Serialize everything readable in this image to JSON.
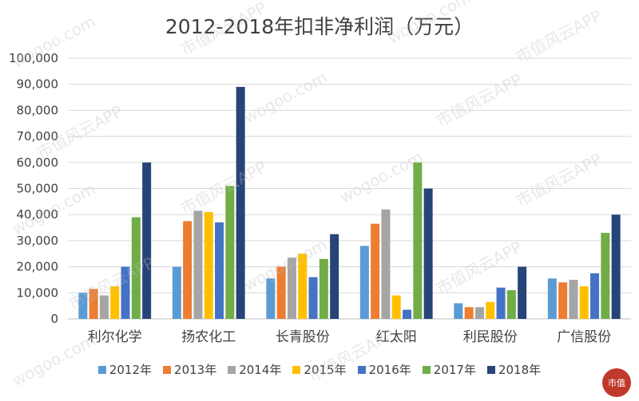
{
  "watermark": {
    "text_cn": "市值风云APP",
    "url": "wogoo.com",
    "logo": "市值"
  },
  "chart_data": {
    "type": "bar",
    "title": "2012-2018年扣非净利润（万元）",
    "xlabel": "",
    "ylabel": "",
    "ylim": [
      0,
      100000
    ],
    "yticks": [
      "0",
      "10,000",
      "20,000",
      "30,000",
      "40,000",
      "50,000",
      "60,000",
      "70,000",
      "80,000",
      "90,000",
      "100,000"
    ],
    "grid": true,
    "legend_position": "bottom",
    "categories": [
      "利尔化学",
      "扬农化工",
      "长青股份",
      "红太阳",
      "利民股份",
      "广信股份"
    ],
    "series": [
      {
        "name": "2012年",
        "color": "#5B9BD5",
        "values": [
          10000,
          20000,
          15500,
          28000,
          6000,
          15500
        ]
      },
      {
        "name": "2013年",
        "color": "#ED7D31",
        "values": [
          11500,
          37500,
          20000,
          36500,
          4500,
          14000
        ]
      },
      {
        "name": "2014年",
        "color": "#A5A5A5",
        "values": [
          9000,
          41500,
          23500,
          42000,
          4500,
          15000
        ]
      },
      {
        "name": "2015年",
        "color": "#FFC000",
        "values": [
          12500,
          41000,
          25000,
          9000,
          6500,
          12500
        ]
      },
      {
        "name": "2016年",
        "color": "#4472C4",
        "values": [
          20000,
          37000,
          16000,
          3500,
          12000,
          17500
        ]
      },
      {
        "name": "2017年",
        "color": "#70AD47",
        "values": [
          39000,
          51000,
          23000,
          60000,
          11000,
          33000
        ]
      },
      {
        "name": "2018年",
        "color": "#264478",
        "values": [
          60000,
          89000,
          32500,
          50000,
          20000,
          40000
        ]
      }
    ]
  }
}
